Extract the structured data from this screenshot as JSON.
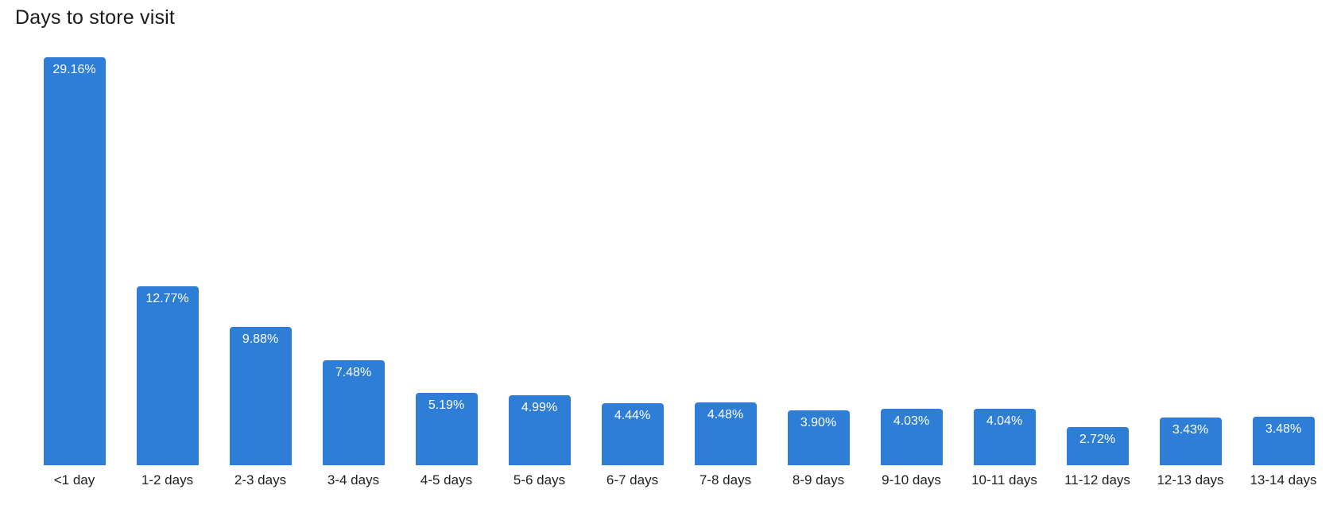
{
  "page": {
    "background_color": "#ffffff"
  },
  "chart_data": {
    "type": "bar",
    "title": "Days to store visit",
    "xlabel": "",
    "ylabel": "",
    "categories": [
      "<1 day",
      "1-2 days",
      "2-3 days",
      "3-4 days",
      "4-5 days",
      "5-6 days",
      "6-7 days",
      "7-8 days",
      "8-9 days",
      "9-10 days",
      "10-11 days",
      "11-12 days",
      "12-13 days",
      "13-14 days"
    ],
    "values": [
      29.16,
      12.77,
      9.88,
      7.48,
      5.19,
      4.99,
      4.44,
      4.48,
      3.9,
      4.03,
      4.04,
      2.72,
      3.43,
      3.48
    ],
    "value_labels": [
      "29.16%",
      "12.77%",
      "9.88%",
      "7.48%",
      "5.19%",
      "4.99%",
      "4.44%",
      "4.48%",
      "3.90%",
      "4.03%",
      "4.04%",
      "2.72%",
      "3.43%",
      "3.48%"
    ],
    "unit": "%",
    "ylim": [
      0,
      29.16
    ],
    "grid": false,
    "legend_position": "none",
    "value_label_position": "inside-top",
    "bar_color": "#2E7DD7",
    "value_label_color": "#ffffff",
    "axis_label_color": "#202124",
    "title_color": "#1a1a1a"
  }
}
